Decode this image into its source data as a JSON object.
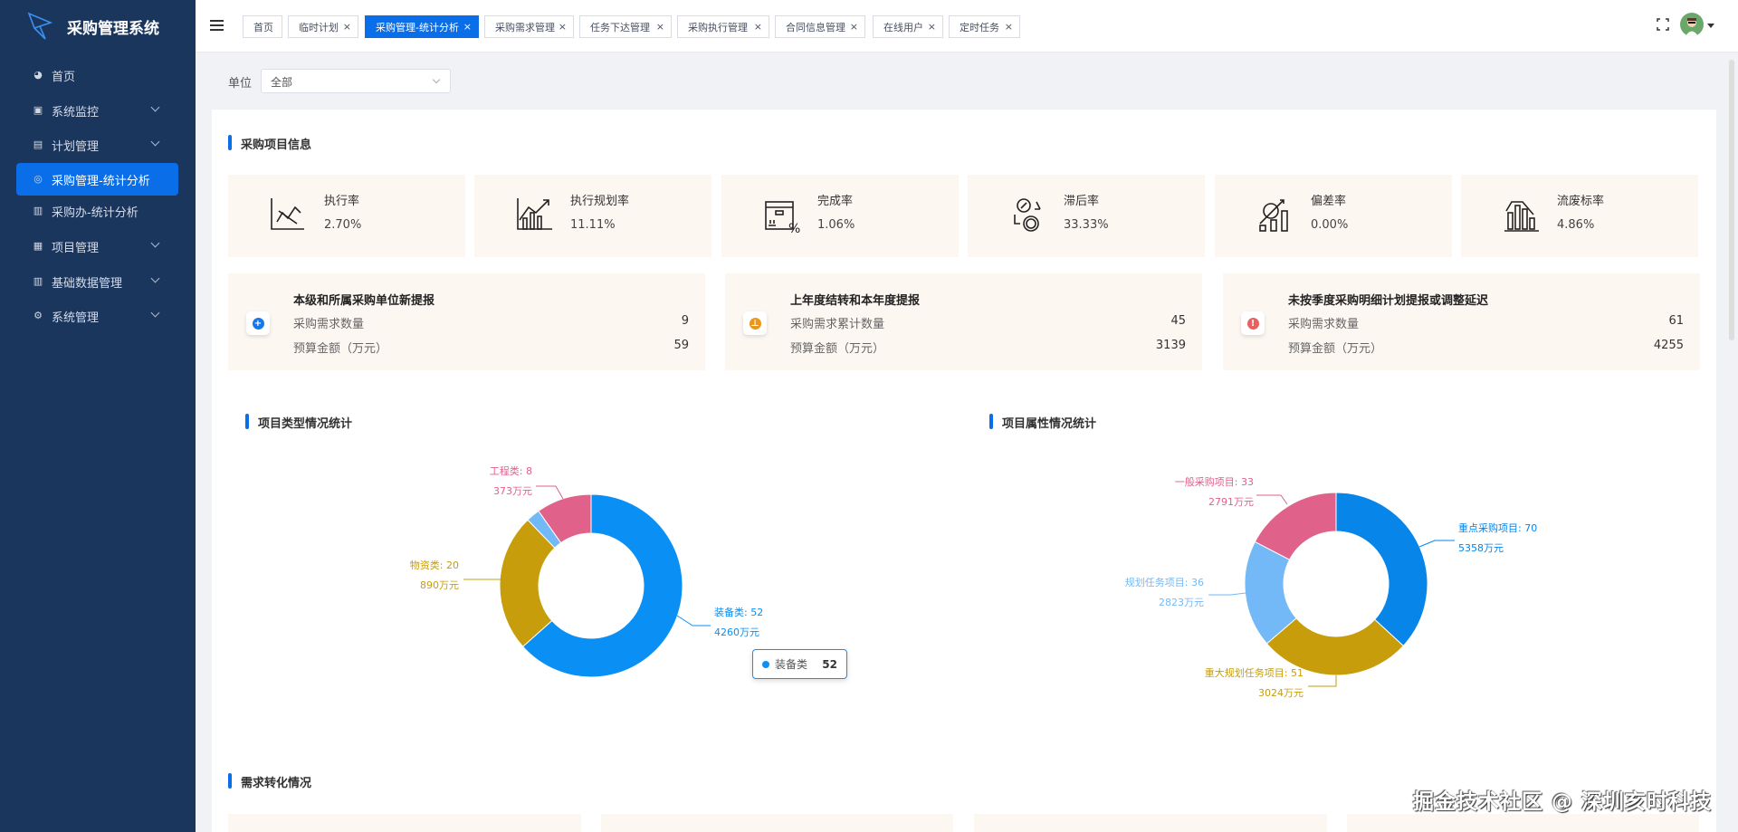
{
  "app": {
    "title": "采购管理系统"
  },
  "sidebar": {
    "items": [
      {
        "label": "首页",
        "icon": "dashboard-icon",
        "glyph": "◕",
        "expandable": false
      },
      {
        "label": "系统监控",
        "icon": "monitor-icon",
        "glyph": "▣",
        "expandable": true
      },
      {
        "label": "计划管理",
        "icon": "calendar-icon",
        "glyph": "▤",
        "expandable": true
      },
      {
        "label": "采购管理-统计分析",
        "icon": "user-circle-icon",
        "glyph": "◎",
        "expandable": false,
        "active": true
      },
      {
        "label": "采购办-统计分析",
        "icon": "bar-chart-icon",
        "glyph": "▥",
        "expandable": false
      },
      {
        "label": "项目管理",
        "icon": "calculator-icon",
        "glyph": "▦",
        "expandable": true
      },
      {
        "label": "基础数据管理",
        "icon": "bar-chart-icon",
        "glyph": "▥",
        "expandable": true
      },
      {
        "label": "系统管理",
        "icon": "gear-icon",
        "glyph": "⚙",
        "expandable": true
      }
    ]
  },
  "tabs": [
    {
      "label": "首页",
      "closable": false
    },
    {
      "label": "临时计划",
      "closable": true
    },
    {
      "label": "采购管理-统计分析",
      "closable": true,
      "active": true
    },
    {
      "label": "采购需求管理",
      "closable": true
    },
    {
      "label": "任务下达管理",
      "closable": true
    },
    {
      "label": "采购执行管理",
      "closable": true
    },
    {
      "label": "合同信息管理",
      "closable": true
    },
    {
      "label": "在线用户",
      "closable": true
    },
    {
      "label": "定时任务",
      "closable": true
    }
  ],
  "close_glyph": "×",
  "filter": {
    "label": "单位",
    "value": "全部"
  },
  "section1": {
    "title": "采购项目信息"
  },
  "metrics": [
    {
      "label": "执行率",
      "value": "2.70%",
      "icon": "line-chart-icon"
    },
    {
      "label": "执行规划率",
      "value": "11.11%",
      "icon": "growth-chart-icon"
    },
    {
      "label": "完成率",
      "value": "1.06%",
      "icon": "box-percent-icon"
    },
    {
      "label": "滞后率",
      "value": "33.33%",
      "icon": "coin-exchange-icon"
    },
    {
      "label": "偏差率",
      "value": "0.00%",
      "icon": "gear-growth-icon"
    },
    {
      "label": "流废标率",
      "value": "4.86%",
      "icon": "decline-chart-icon"
    }
  ],
  "summaries": [
    {
      "title": "本级和所属采购单位新提报",
      "badge": "plus-icon",
      "badge_glyph": "+",
      "badge_color": "#1677e6",
      "rows": [
        {
          "label": "采购需求数量",
          "value": "9"
        },
        {
          "label": "预算金额（万元）",
          "value": "59"
        }
      ]
    },
    {
      "title": "上年度结转和本年度提报",
      "badge": "upload-icon",
      "badge_glyph": "⊥",
      "badge_color": "#e8971a",
      "rows": [
        {
          "label": "采购需求累计数量",
          "value": "45"
        },
        {
          "label": "预算金额（万元）",
          "value": "3139"
        }
      ]
    },
    {
      "title": "未按季度采购明细计划提报或调整延迟",
      "badge": "alert-icon",
      "badge_glyph": "!",
      "badge_color": "#e86060",
      "rows": [
        {
          "label": "采购需求数量",
          "value": "61"
        },
        {
          "label": "预算金额（万元）",
          "value": "4255"
        }
      ]
    }
  ],
  "chart_data": [
    {
      "type": "pie",
      "donut": true,
      "title": "项目类型情况统计",
      "unit": "万元",
      "slices": [
        {
          "name": "装备类",
          "value": 52,
          "amount": "4260",
          "label": "装备类: 52",
          "amount_label": "4260万元",
          "color": "#0a8ff5"
        },
        {
          "name": "物资类",
          "value": 20,
          "amount": "890",
          "label": "物资类: 20",
          "amount_label": "890万元",
          "color": "#c79d0b"
        },
        {
          "name": "",
          "value": 2,
          "color": "#74b9f7"
        },
        {
          "name": "工程类",
          "value": 8,
          "amount": "373",
          "label": "工程类: 8",
          "amount_label": "373万元",
          "color": "#e0628a"
        }
      ],
      "tooltip": {
        "name": "装备类",
        "value": "52"
      }
    },
    {
      "type": "pie",
      "donut": true,
      "title": "项目属性情况统计",
      "unit": "万元",
      "slices": [
        {
          "name": "重点采购项目",
          "value": 70,
          "label": "重点采购项目: 70",
          "amount_label": "5358万元",
          "color": "#0785e8"
        },
        {
          "name": "重大规划任务项目",
          "value": 51,
          "label": "重大规划任务项目: 51",
          "amount_label": "3024万元",
          "color": "#c79d0b"
        },
        {
          "name": "规划任务项目",
          "value": 36,
          "label": "规划任务项目: 36",
          "amount_label": "2823万元",
          "color": "#74b9f7"
        },
        {
          "name": "一般采购项目",
          "value": 33,
          "label": "一般采购项目: 33",
          "amount_label": "2791万元",
          "color": "#e0628a"
        }
      ]
    }
  ],
  "section4": {
    "title": "需求转化情况"
  },
  "watermark": "掘金技术社区 @ 深圳亥时科技",
  "accent": "#0a6ee8"
}
